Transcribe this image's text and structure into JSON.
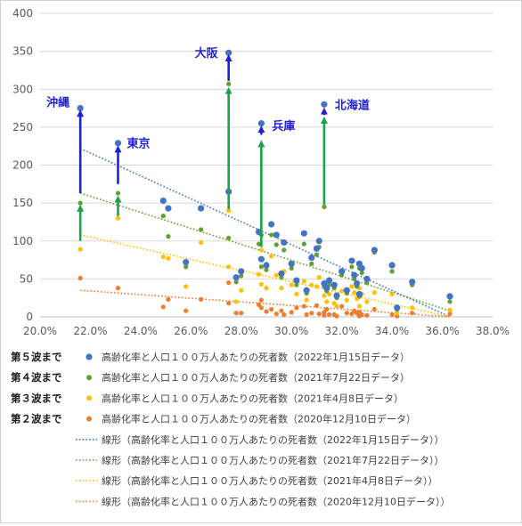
{
  "chart_data": {
    "type": "scatter",
    "xlim": [
      0.2,
      0.38
    ],
    "ylim": [
      0,
      400
    ],
    "x_ticks": [
      "20.0%",
      "22.0%",
      "24.0%",
      "26.0%",
      "28.0%",
      "30.0%",
      "32.0%",
      "34.0%",
      "36.0%",
      "38.0%"
    ],
    "y_ticks": [
      "0",
      "50",
      "100",
      "150",
      "200",
      "250",
      "300",
      "350",
      "400"
    ],
    "grid": "horizontal",
    "legend_position": "bottom",
    "series": [
      {
        "name": "高齢化率と人口１００万人あたりの死者数（2022年1月15日データ）",
        "wave_label": "第５波まで",
        "color": "#4472c4",
        "marker_size": 3.6,
        "points": [
          [
            0.216,
            275
          ],
          [
            0.231,
            229
          ],
          [
            0.275,
            348
          ],
          [
            0.288,
            255
          ],
          [
            0.313,
            280
          ],
          [
            0.249,
            153
          ],
          [
            0.251,
            143
          ],
          [
            0.264,
            143
          ],
          [
            0.258,
            72
          ],
          [
            0.275,
            165
          ],
          [
            0.278,
            52
          ],
          [
            0.28,
            60
          ],
          [
            0.287,
            112
          ],
          [
            0.288,
            76
          ],
          [
            0.29,
            68
          ],
          [
            0.292,
            122
          ],
          [
            0.294,
            108
          ],
          [
            0.296,
            57
          ],
          [
            0.297,
            98
          ],
          [
            0.3,
            70
          ],
          [
            0.302,
            48
          ],
          [
            0.306,
            35
          ],
          [
            0.305,
            110
          ],
          [
            0.308,
            78
          ],
          [
            0.31,
            90
          ],
          [
            0.311,
            100
          ],
          [
            0.313,
            44
          ],
          [
            0.314,
            38
          ],
          [
            0.315,
            48
          ],
          [
            0.317,
            42
          ],
          [
            0.318,
            28
          ],
          [
            0.32,
            60
          ],
          [
            0.322,
            35
          ],
          [
            0.324,
            74
          ],
          [
            0.325,
            55
          ],
          [
            0.326,
            44
          ],
          [
            0.327,
            70
          ],
          [
            0.328,
            64
          ],
          [
            0.33,
            50
          ],
          [
            0.333,
            88
          ],
          [
            0.327,
            30
          ],
          [
            0.34,
            68
          ],
          [
            0.342,
            12
          ],
          [
            0.348,
            46
          ],
          [
            0.363,
            27
          ]
        ]
      },
      {
        "name": "高齢化率と人口１００万人あたりの死者数（2021年7月22日データ）",
        "wave_label": "第４波まで",
        "color": "#62a02f",
        "marker_size": 2.6,
        "points": [
          [
            0.216,
            150
          ],
          [
            0.231,
            163
          ],
          [
            0.275,
            307
          ],
          [
            0.288,
            108
          ],
          [
            0.313,
            145
          ],
          [
            0.249,
            133
          ],
          [
            0.251,
            106
          ],
          [
            0.264,
            115
          ],
          [
            0.258,
            66
          ],
          [
            0.275,
            104
          ],
          [
            0.278,
            46
          ],
          [
            0.28,
            54
          ],
          [
            0.287,
            96
          ],
          [
            0.288,
            66
          ],
          [
            0.29,
            62
          ],
          [
            0.292,
            108
          ],
          [
            0.294,
            95
          ],
          [
            0.296,
            52
          ],
          [
            0.297,
            88
          ],
          [
            0.3,
            64
          ],
          [
            0.302,
            42
          ],
          [
            0.306,
            31
          ],
          [
            0.305,
            96
          ],
          [
            0.308,
            70
          ],
          [
            0.31,
            82
          ],
          [
            0.311,
            92
          ],
          [
            0.313,
            40
          ],
          [
            0.314,
            34
          ],
          [
            0.315,
            42
          ],
          [
            0.317,
            38
          ],
          [
            0.318,
            25
          ],
          [
            0.32,
            55
          ],
          [
            0.322,
            31
          ],
          [
            0.324,
            66
          ],
          [
            0.325,
            50
          ],
          [
            0.326,
            40
          ],
          [
            0.327,
            64
          ],
          [
            0.328,
            58
          ],
          [
            0.33,
            45
          ],
          [
            0.333,
            85
          ],
          [
            0.327,
            27
          ],
          [
            0.34,
            60
          ],
          [
            0.342,
            10
          ],
          [
            0.348,
            42
          ],
          [
            0.363,
            20
          ]
        ]
      },
      {
        "name": "高齢化率と人口１００万人あたりの死者数（2021年4月8日データ）",
        "wave_label": "第３波まで",
        "color": "#ffc000",
        "marker_size": 2.6,
        "points": [
          [
            0.216,
            89
          ],
          [
            0.231,
            130
          ],
          [
            0.275,
            140
          ],
          [
            0.288,
            88
          ],
          [
            0.313,
            145
          ],
          [
            0.249,
            79
          ],
          [
            0.251,
            77
          ],
          [
            0.264,
            98
          ],
          [
            0.258,
            40
          ],
          [
            0.275,
            66
          ],
          [
            0.278,
            20
          ],
          [
            0.28,
            35
          ],
          [
            0.287,
            56
          ],
          [
            0.288,
            43
          ],
          [
            0.29,
            38
          ],
          [
            0.292,
            80
          ],
          [
            0.294,
            55
          ],
          [
            0.296,
            38
          ],
          [
            0.297,
            60
          ],
          [
            0.3,
            42
          ],
          [
            0.302,
            30
          ],
          [
            0.306,
            22
          ],
          [
            0.305,
            47
          ],
          [
            0.308,
            42
          ],
          [
            0.31,
            40
          ],
          [
            0.311,
            52
          ],
          [
            0.313,
            28
          ],
          [
            0.314,
            20
          ],
          [
            0.315,
            30
          ],
          [
            0.317,
            18
          ],
          [
            0.318,
            14
          ],
          [
            0.32,
            34
          ],
          [
            0.322,
            22
          ],
          [
            0.324,
            40
          ],
          [
            0.325,
            32
          ],
          [
            0.326,
            24
          ],
          [
            0.327,
            38
          ],
          [
            0.328,
            30
          ],
          [
            0.33,
            20
          ],
          [
            0.333,
            32
          ],
          [
            0.327,
            14
          ],
          [
            0.34,
            30
          ],
          [
            0.342,
            5
          ],
          [
            0.348,
            12
          ],
          [
            0.363,
            9
          ]
        ]
      },
      {
        "name": "高齢化率と人口１００万人あたりの死者数（2020年12月10日データ）",
        "wave_label": "第２波まで",
        "color": "#ed7d31",
        "marker_size": 2.6,
        "points": [
          [
            0.216,
            51
          ],
          [
            0.231,
            38
          ],
          [
            0.275,
            45
          ],
          [
            0.288,
            22
          ],
          [
            0.313,
            6
          ],
          [
            0.249,
            13
          ],
          [
            0.251,
            23
          ],
          [
            0.264,
            23
          ],
          [
            0.258,
            8
          ],
          [
            0.275,
            18
          ],
          [
            0.278,
            5
          ],
          [
            0.28,
            5
          ],
          [
            0.287,
            16
          ],
          [
            0.288,
            12
          ],
          [
            0.29,
            7
          ],
          [
            0.292,
            10
          ],
          [
            0.294,
            4
          ],
          [
            0.296,
            8
          ],
          [
            0.297,
            3
          ],
          [
            0.3,
            6
          ],
          [
            0.302,
            12
          ],
          [
            0.306,
            3
          ],
          [
            0.305,
            14
          ],
          [
            0.308,
            5
          ],
          [
            0.31,
            15
          ],
          [
            0.311,
            4
          ],
          [
            0.313,
            2
          ],
          [
            0.314,
            10
          ],
          [
            0.315,
            3
          ],
          [
            0.317,
            3
          ],
          [
            0.318,
            1
          ],
          [
            0.32,
            14
          ],
          [
            0.322,
            5
          ],
          [
            0.324,
            4
          ],
          [
            0.325,
            8
          ],
          [
            0.326,
            5
          ],
          [
            0.327,
            6
          ],
          [
            0.328,
            3
          ],
          [
            0.33,
            2
          ],
          [
            0.333,
            10
          ],
          [
            0.327,
            1
          ],
          [
            0.34,
            3
          ],
          [
            0.342,
            1
          ],
          [
            0.348,
            5
          ],
          [
            0.363,
            4
          ]
        ]
      }
    ],
    "trendlines": [
      {
        "name": "線形（高齢化率と人口１００万人あたりの死者数（2022年1月15日データ））",
        "color": "#4472c4",
        "from": [
          0.216,
          222
        ],
        "to": [
          0.363,
          0
        ]
      },
      {
        "name": "線形（高齢化率と人口１００万人あたりの死者数（2021年7月22日データ））",
        "color": "#62a02f",
        "from": [
          0.216,
          163
        ],
        "to": [
          0.363,
          8
        ]
      },
      {
        "name": "線形（高齢化率と人口１００万人あたりの死者数（2021年4月8日データ））",
        "color": "#ffc000",
        "from": [
          0.216,
          108
        ],
        "to": [
          0.363,
          0
        ]
      },
      {
        "name": "線形（高齢化率と人口１００万人あたりの死者数（2020年12月10日データ））",
        "color": "#ed7d31",
        "from": [
          0.216,
          35
        ],
        "to": [
          0.363,
          0
        ]
      }
    ],
    "annotations": [
      {
        "label": "沖縄",
        "x": 0.216,
        "arrows": [
          {
            "from": 163,
            "to": 273,
            "color": "#1f1fd6"
          },
          {
            "from": 100,
            "to": 148,
            "color": "#1aa34a"
          }
        ]
      },
      {
        "label": "東京",
        "x": 0.231,
        "arrows": [
          {
            "from": 175,
            "to": 226,
            "color": "#1f1fd6"
          },
          {
            "from": 133,
            "to": 160,
            "color": "#1aa34a"
          }
        ]
      },
      {
        "label": "大阪",
        "x": 0.275,
        "arrows": [
          {
            "from": 311,
            "to": 346,
            "color": "#1f1fd6"
          },
          {
            "from": 142,
            "to": 303,
            "color": "#1aa34a"
          }
        ]
      },
      {
        "label": "兵庫",
        "x": 0.288,
        "arrows": [
          {
            "from": 240,
            "to": 252,
            "color": "#1f1fd6"
          },
          {
            "from": 92,
            "to": 233,
            "color": "#1aa34a"
          }
        ]
      },
      {
        "label": "北海道",
        "x": 0.313,
        "arrows": [
          {
            "from": 266,
            "to": 276,
            "color": "#1f1fd6"
          },
          {
            "from": 148,
            "to": 264,
            "color": "#1aa34a"
          }
        ]
      }
    ]
  }
}
